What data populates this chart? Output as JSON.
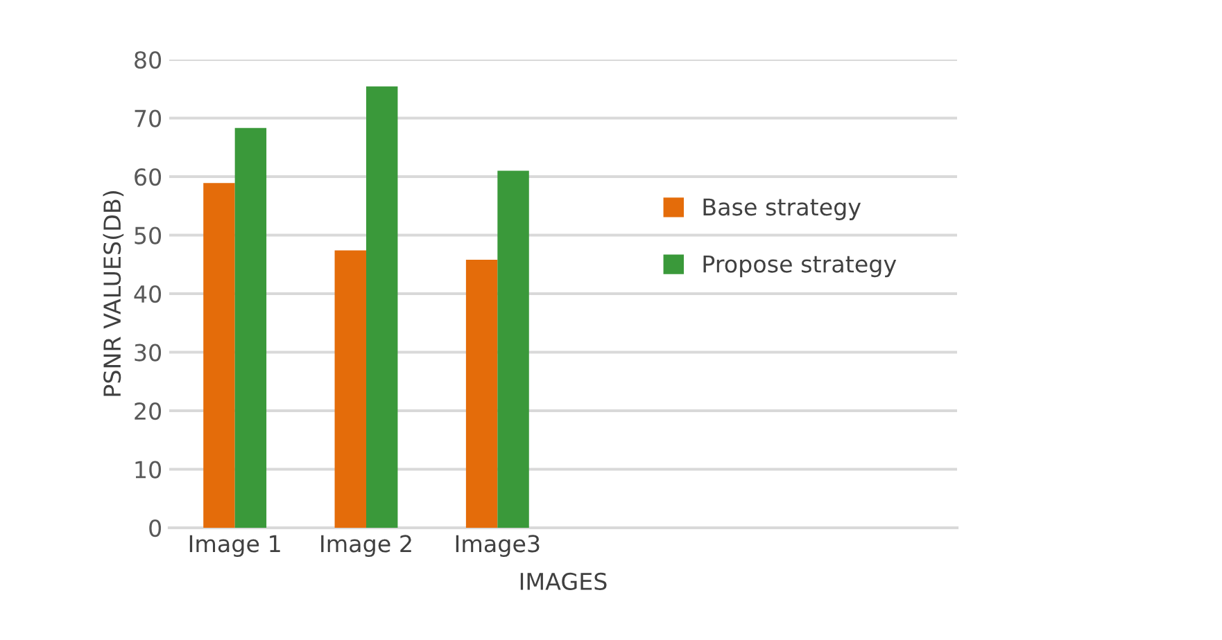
{
  "chart_data": {
    "type": "bar",
    "xlabel": "IMAGES",
    "ylabel": "PSNR VALUES(DB)",
    "categories": [
      "Image 1",
      "Image 2",
      "Image3",
      null,
      null,
      null
    ],
    "series": [
      {
        "name": "Base strategy",
        "color": "#e46c0a",
        "values": [
          58.9,
          47.4,
          45.8,
          null,
          null,
          null
        ]
      },
      {
        "name": "Propose strategy",
        "color": "#3a993a",
        "values": [
          68.3,
          75.4,
          61.0,
          null,
          null,
          null
        ]
      }
    ],
    "ylim": [
      0,
      80
    ],
    "yticks": [
      0,
      10,
      20,
      30,
      40,
      50,
      60,
      70,
      80
    ],
    "grid": "y",
    "legend": "right"
  }
}
